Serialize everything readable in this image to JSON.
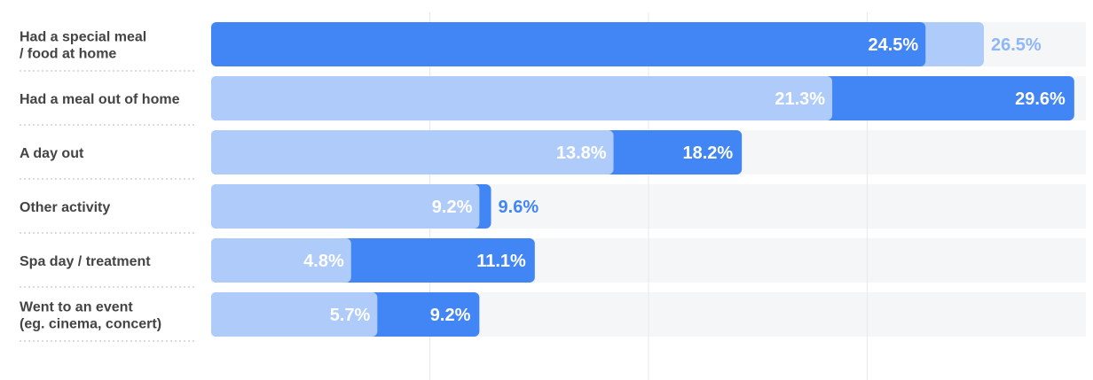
{
  "chart_data": {
    "type": "bar",
    "orientation": "horizontal",
    "categories": [
      [
        "Had a special meal",
        "/ food at home"
      ],
      [
        "Had a meal out of home"
      ],
      [
        "A day out"
      ],
      [
        "Other activity"
      ],
      [
        "Spa day / treatment"
      ],
      [
        "Went to an event",
        "(eg. cinema, concert)"
      ]
    ],
    "series": [
      {
        "values": [
          26.5,
          21.3,
          13.8,
          9.2,
          4.8,
          5.7
        ],
        "labels": [
          "26.5%",
          "21.3%",
          "13.8%",
          "9.2%",
          "4.8%",
          "5.7%"
        ]
      },
      {
        "values": [
          24.5,
          29.6,
          18.2,
          9.6,
          11.1,
          9.2
        ],
        "labels": [
          "24.5%",
          "29.6%",
          "18.2%",
          "9.6%",
          "11.1%",
          "9.2%"
        ]
      }
    ],
    "xlim": [
      0,
      30
    ],
    "grid": true,
    "legend": "none",
    "colors": {
      "light": "#aecbfa",
      "dark": "#4285f4",
      "track": "#f5f6f8",
      "grid": "#e6e8ec"
    }
  }
}
